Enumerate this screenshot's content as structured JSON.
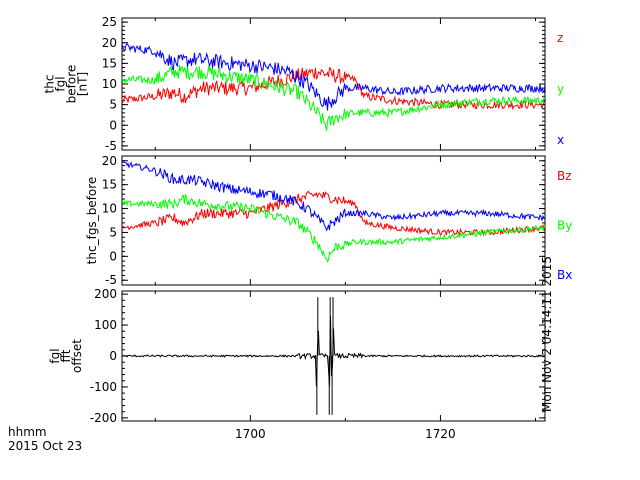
{
  "figure": {
    "time_axis_label": "hhmm",
    "date_label": "2015 Oct 23",
    "timestamp": "Mon Nov  2 04:14:11 2015",
    "x_tick_labels": [
      "1700",
      "1720"
    ]
  },
  "colors": {
    "red": "#ff0000",
    "green": "#00ff00",
    "blue": "#0000ff",
    "black": "#000000"
  },
  "chart_data": [
    {
      "type": "line",
      "ylabel": [
        "thc",
        "fgl",
        "before",
        "[nT]"
      ],
      "ylim": [
        -6,
        26
      ],
      "yticks": [
        -5,
        0,
        5,
        10,
        15,
        20,
        25
      ],
      "xlim": [
        1686.5,
        1731
      ],
      "xticks": [
        1700,
        1720
      ],
      "series": [
        {
          "name": "z",
          "color": "#ff0000",
          "x": [
            1686.5,
            1690,
            1692,
            1693,
            1695,
            1700,
            1705,
            1707,
            1709,
            1711,
            1712,
            1715,
            1720,
            1725,
            1731
          ],
          "y": [
            6,
            7,
            8,
            7,
            9,
            9,
            12,
            13,
            12,
            11,
            7,
            6,
            5,
            5,
            5
          ]
        },
        {
          "name": "y",
          "color": "#00ff00",
          "x": [
            1686.5,
            1690,
            1692,
            1693,
            1695,
            1700,
            1705,
            1707,
            1708,
            1709,
            1711,
            1715,
            1720,
            1725,
            1731
          ],
          "y": [
            11,
            11,
            13,
            13,
            13,
            11,
            8,
            3,
            0,
            2,
            3,
            3,
            5,
            6,
            6
          ]
        },
        {
          "name": "x",
          "color": "#0000ff",
          "x": [
            1686.5,
            1690,
            1692,
            1694,
            1698,
            1702,
            1704,
            1706,
            1708,
            1710,
            1712,
            1715,
            1720,
            1725,
            1731
          ],
          "y": [
            19,
            18,
            15,
            16,
            15,
            14,
            13,
            10,
            5,
            9,
            9,
            8,
            9,
            9,
            9
          ]
        }
      ],
      "legend_placement": "right"
    },
    {
      "type": "line",
      "ylabel": [
        "thc_fgs_before"
      ],
      "ylim": [
        -6,
        21
      ],
      "yticks": [
        -5,
        0,
        5,
        10,
        15,
        20
      ],
      "xlim": [
        1686.5,
        1731
      ],
      "xticks": [
        1700,
        1720
      ],
      "series": [
        {
          "name": "Bz",
          "color": "#ff0000",
          "x": [
            1686.5,
            1690,
            1692,
            1693,
            1695,
            1700,
            1705,
            1707,
            1709,
            1711,
            1712,
            1715,
            1720,
            1725,
            1731
          ],
          "y": [
            6,
            7,
            8,
            7,
            9,
            9,
            12,
            13,
            12,
            11,
            7,
            6,
            5,
            5,
            6
          ]
        },
        {
          "name": "By",
          "color": "#00ff00",
          "x": [
            1686.5,
            1690,
            1692,
            1693,
            1695,
            1700,
            1705,
            1707,
            1708,
            1709,
            1711,
            1715,
            1720,
            1725,
            1731
          ],
          "y": [
            11,
            11,
            11,
            12,
            11,
            10,
            7,
            3,
            -0.5,
            2,
            3,
            3,
            4,
            5,
            6
          ]
        },
        {
          "name": "Bx",
          "color": "#0000ff",
          "x": [
            1686.5,
            1690,
            1692,
            1694,
            1698,
            1702,
            1704,
            1706,
            1708,
            1710,
            1712,
            1715,
            1720,
            1725,
            1731
          ],
          "y": [
            19.5,
            18,
            16,
            16,
            14,
            13,
            12,
            10,
            6,
            9,
            9,
            8,
            9,
            9,
            8
          ]
        }
      ],
      "legend_placement": "right"
    },
    {
      "type": "line",
      "ylabel": [
        "fgl",
        "fft",
        "offset"
      ],
      "ylim": [
        -210,
        210
      ],
      "yticks": [
        -200,
        -100,
        0,
        100,
        200
      ],
      "xlim": [
        1686.5,
        1731
      ],
      "xticks": [
        1700,
        1720
      ],
      "series": [
        {
          "color": "#000000",
          "x": [
            1686.5,
            1700,
            1706.9,
            1707.0,
            1707.1,
            1707.2,
            1708.2,
            1708.3,
            1708.4,
            1708.5,
            1708.6,
            1708.7,
            1708.8,
            1720,
            1731
          ],
          "y": [
            0,
            0,
            0,
            -190,
            190,
            0,
            0,
            -190,
            190,
            0,
            -190,
            190,
            0,
            0,
            0
          ]
        }
      ]
    }
  ]
}
